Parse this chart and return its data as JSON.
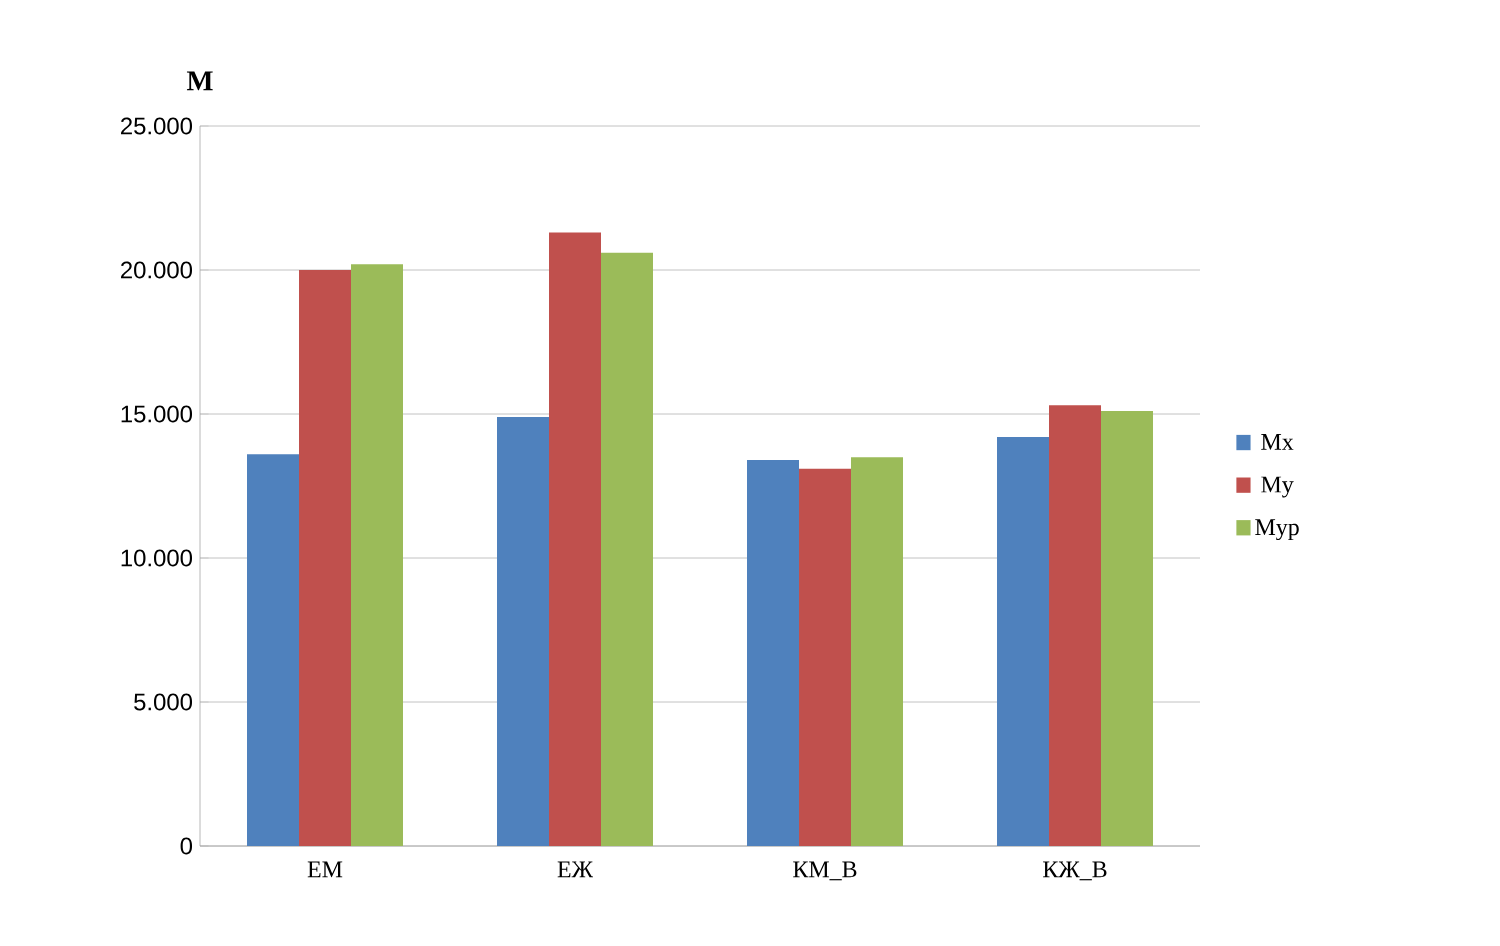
{
  "chart_data": {
    "type": "bar",
    "ylabel": "M",
    "categories": [
      "ЕМ",
      "ЕЖ",
      "КМ_В",
      "КЖ_В"
    ],
    "series": [
      {
        "name": "Mx",
        "color": "#4f81bd",
        "values": [
          13600,
          14900,
          13400,
          14200
        ]
      },
      {
        "name": "My",
        "color": "#c0504d",
        "values": [
          20000,
          21300,
          13100,
          15300
        ]
      },
      {
        "name": "Myp",
        "color": "#9bbb59",
        "values": [
          20200,
          20600,
          13500,
          15100
        ]
      }
    ],
    "ylim": [
      0,
      25000
    ],
    "yticks": [
      {
        "value": 0,
        "label": "0"
      },
      {
        "value": 5000,
        "label": "5.000"
      },
      {
        "value": 10000,
        "label": "10.000"
      },
      {
        "value": 15000,
        "label": "15.000"
      },
      {
        "value": 20000,
        "label": "20.000"
      },
      {
        "value": 25000,
        "label": "25.000"
      }
    ],
    "grid": "y",
    "legend": "right"
  }
}
